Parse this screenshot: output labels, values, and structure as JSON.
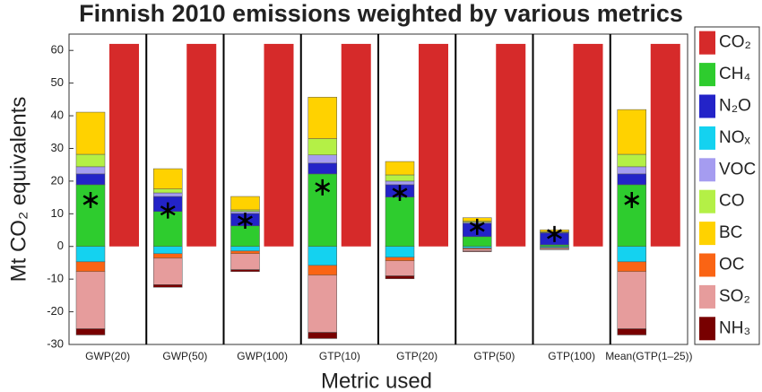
{
  "chart_data": {
    "type": "bar",
    "title": "Finnish 2010 emissions weighted by various metrics",
    "x_label": "Metric used",
    "y_label": "Mt CO₂ equivalents",
    "categories": [
      "GWP(20)",
      "GWP(50)",
      "GWP(100)",
      "GTP(10)",
      "GTP(20)",
      "GTP(50)",
      "GTP(100)",
      "Mean(GTP(1–25))"
    ],
    "series": [
      {
        "name": "CO₂",
        "color": "#d62a2a",
        "values": [
          62,
          62,
          62,
          62,
          62,
          62,
          62,
          62
        ]
      },
      {
        "name": "CH₄",
        "color": "#2ecc2e",
        "values": [
          18.9,
          10.7,
          6.3,
          22.2,
          15.1,
          3.0,
          0.5,
          18.9
        ]
      },
      {
        "name": "N₂O",
        "color": "#2323c8",
        "values": [
          3.3,
          4.6,
          3.8,
          3.3,
          3.8,
          4.1,
          3.6,
          3.3
        ]
      },
      {
        "name": "NOₓ",
        "color": "#14d2f0",
        "values": [
          -4.7,
          -2.2,
          -1.4,
          -5.8,
          -3.3,
          -0.5,
          -0.3,
          -4.7
        ]
      },
      {
        "name": "VOC",
        "color": "#a59cf0",
        "values": [
          2.2,
          1.1,
          0.6,
          2.5,
          1.1,
          0.3,
          0.2,
          2.2
        ]
      },
      {
        "name": "CO",
        "color": "#b4f046",
        "values": [
          3.8,
          1.2,
          0.5,
          5.0,
          1.9,
          0.3,
          0.2,
          3.8
        ]
      },
      {
        "name": "BC",
        "color": "#ffd200",
        "values": [
          12.9,
          6.2,
          4.1,
          12.7,
          4.1,
          1.1,
          0.6,
          13.7
        ]
      },
      {
        "name": "OC",
        "color": "#fa6414",
        "values": [
          -3.0,
          -1.4,
          -0.8,
          -3.0,
          -1.1,
          -0.3,
          -0.2,
          -3.0
        ]
      },
      {
        "name": "SO₂",
        "color": "#e69c9c",
        "values": [
          -17.5,
          -8.1,
          -4.9,
          -17.5,
          -4.6,
          -0.6,
          -0.4,
          -17.5
        ]
      },
      {
        "name": "NH₃",
        "color": "#780000",
        "values": [
          -1.9,
          -0.8,
          -0.6,
          -1.9,
          -0.9,
          -0.2,
          -0.1,
          -1.9
        ]
      }
    ],
    "net": [
      14.2,
      11.0,
      7.9,
      18.1,
      16.4,
      6.0,
      3.8,
      14.2
    ],
    "ylim": [
      -30,
      65
    ],
    "yticks": [
      -30,
      -20,
      -10,
      0,
      10,
      20,
      30,
      40,
      50,
      60
    ],
    "legend": "right"
  }
}
